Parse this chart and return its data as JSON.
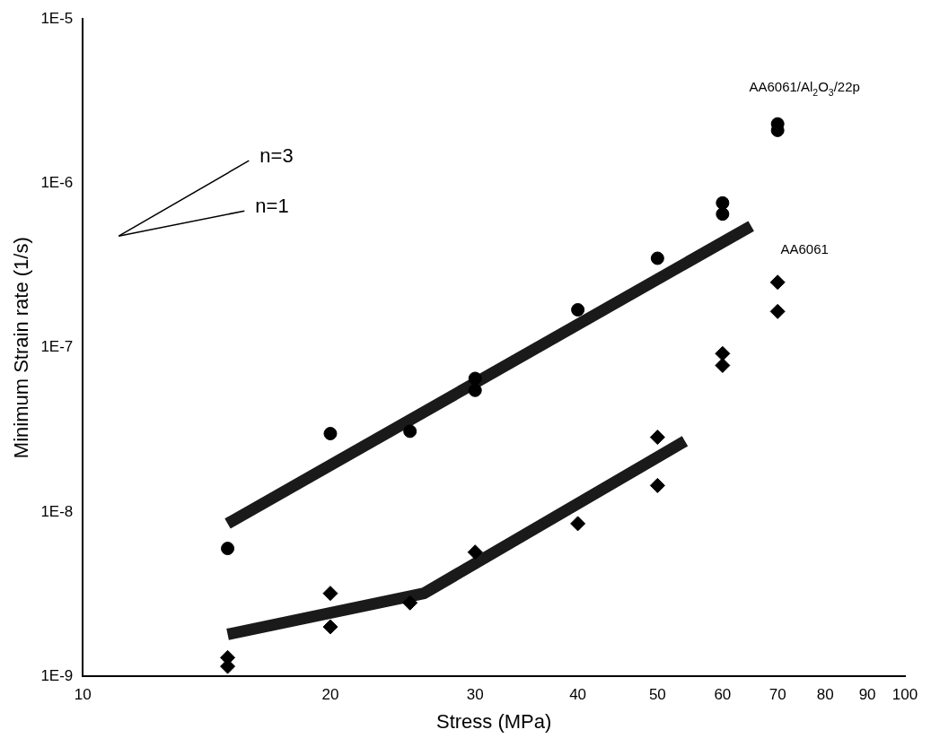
{
  "chart_data": {
    "type": "scatter",
    "xlabel": "Stress (MPa)",
    "ylabel": "Minimum Strain rate (1/s)",
    "log": "xy",
    "grid": false,
    "legend": false,
    "xlim": [
      10,
      100
    ],
    "xticks": [
      10,
      20,
      30,
      40,
      50,
      60,
      70,
      80,
      90,
      100
    ],
    "ylim": [
      1e-09,
      1e-05
    ],
    "yticks": [
      {
        "value": 1e-09,
        "label": "1E-9"
      },
      {
        "value": 1e-08,
        "label": "1E-8"
      },
      {
        "value": 1e-07,
        "label": "1E-7"
      },
      {
        "value": 1e-06,
        "label": "1E-6"
      },
      {
        "value": 1e-05,
        "label": "1E-5"
      }
    ],
    "series": [
      {
        "name": "AA6061/Al$_{2}$O$_{3}$/22p",
        "type": "scatter",
        "marker": "circle",
        "color": "#000000",
        "x": [
          15,
          20,
          25,
          30,
          30,
          40,
          50,
          60,
          60,
          70,
          70
        ],
        "values": [
          6e-09,
          3e-08,
          3.1e-08,
          6.5e-08,
          5.5e-08,
          1.7e-07,
          3.5e-07,
          7.6e-07,
          6.5e-07,
          2.3e-06,
          2.1e-06
        ]
      },
      {
        "name": "AA6061",
        "type": "scatter",
        "marker": "diamond",
        "color": "#000000",
        "x": [
          15,
          15,
          20,
          20,
          25,
          30,
          40,
          50,
          50,
          60,
          60,
          70,
          70
        ],
        "values": [
          1.3e-09,
          1.15e-09,
          3.2e-09,
          2e-09,
          2.8e-09,
          5.7e-09,
          8.5e-09,
          1.45e-08,
          2.85e-08,
          9.2e-08,
          7.8e-08,
          2.5e-07,
          1.66e-07
        ]
      },
      {
        "type": "line",
        "marker": "none",
        "color": "#1a1a1a",
        "x": [
          15,
          65
        ],
        "values": [
          8.5e-09,
          5.5e-07
        ]
      },
      {
        "type": "line",
        "marker": "none",
        "color": "#1a1a1a",
        "x": [
          15,
          26,
          54
        ],
        "values": [
          1.8e-09,
          3.2e-09,
          2.7e-08
        ]
      }
    ],
    "annotations": [
      "n=3",
      "n=1"
    ]
  }
}
